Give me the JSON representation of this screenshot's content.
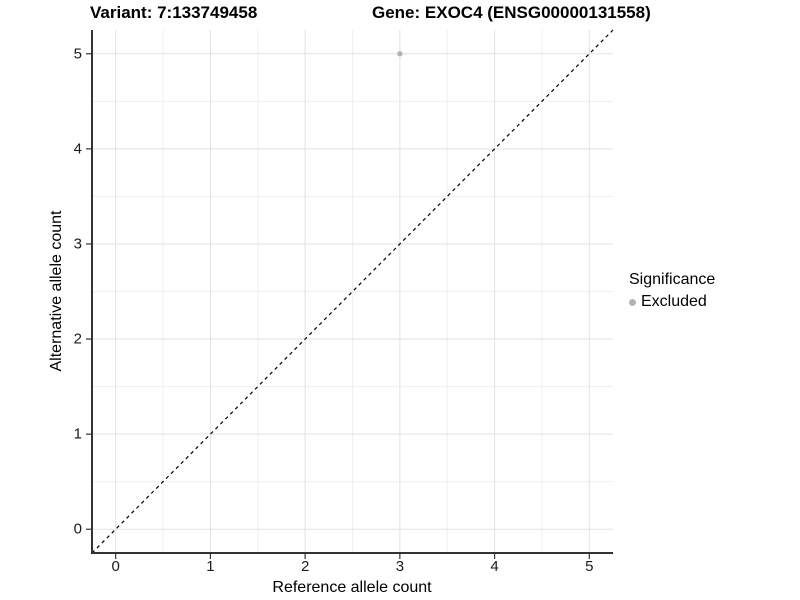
{
  "titles": {
    "left": "Variant: 7:133749458",
    "right": "Gene: EXOC4 (ENSG00000131558)"
  },
  "legend": {
    "title": "Significance",
    "items": [
      {
        "label": "Excluded",
        "color": "#b3b3b3",
        "marker": "dot-icon"
      }
    ]
  },
  "chart_data": {
    "type": "scatter",
    "title": "Variant: 7:133749458   Gene: EXOC4 (ENSG00000131558)",
    "xlabel": "Reference allele count",
    "ylabel": "Alternative allele count",
    "xlim": [
      -0.25,
      5.25
    ],
    "ylim": [
      -0.25,
      5.25
    ],
    "x_ticks": [
      0,
      1,
      2,
      3,
      4,
      5
    ],
    "y_ticks": [
      0,
      1,
      2,
      3,
      4,
      5
    ],
    "x_minor_gridlines": [
      0.5,
      1.5,
      2.5,
      3.5,
      4.5
    ],
    "y_minor_gridlines": [
      0.5,
      1.5,
      2.5,
      3.5,
      4.5
    ],
    "grid": true,
    "legend_position": "right",
    "series": [
      {
        "name": "Excluded",
        "color": "#b3b3b3",
        "points": [
          {
            "x": 3,
            "y": 5
          }
        ]
      }
    ],
    "reference_line": {
      "type": "identity",
      "style": "dashed",
      "color": "#000000",
      "from": [
        -0.25,
        -0.25
      ],
      "to": [
        5.25,
        5.25
      ]
    },
    "colors": {
      "background": "#ffffff",
      "grid_major": "#e2e2e2",
      "grid_minor": "#efefef",
      "axis": "#333333",
      "point_excluded": "#b3b3b3"
    }
  }
}
